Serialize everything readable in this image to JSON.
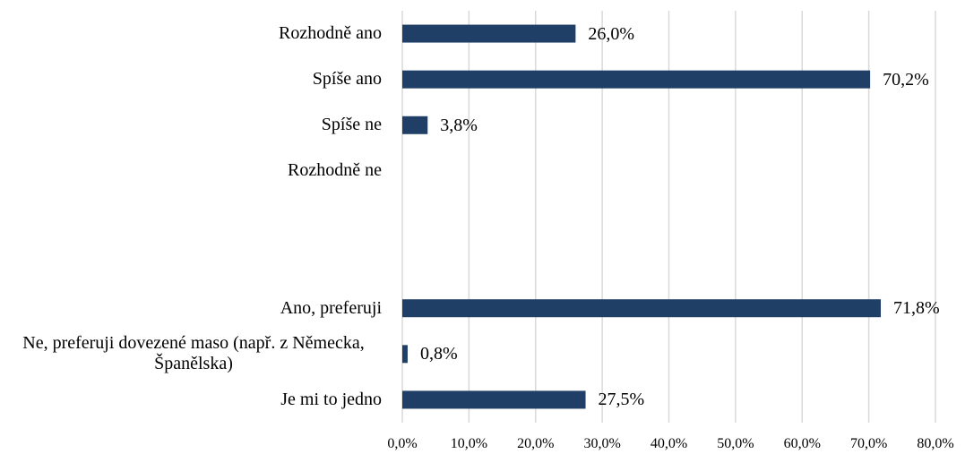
{
  "chart_data": {
    "type": "bar",
    "orientation": "horizontal",
    "categories": [
      "Rozhodně ano",
      "Spíše ano",
      "Spíše ne",
      "Rozhodně ne",
      null,
      null,
      "Ano, preferuji",
      "Ne, preferuji dovezené maso (např. z Německa, Španělska)",
      "Je mi to jedno"
    ],
    "values": [
      26.0,
      70.2,
      3.8,
      null,
      null,
      null,
      71.8,
      0.8,
      27.5
    ],
    "value_labels": [
      "26,0%",
      "70,2%",
      "3,8%",
      null,
      null,
      null,
      "71,8%",
      "0,8%",
      "27,5%"
    ],
    "color": "#1f3f66",
    "xlim": [
      0,
      80
    ],
    "xticks": [
      {
        "value": 0,
        "label": "0,0%"
      },
      {
        "value": 10,
        "label": "10,0%"
      },
      {
        "value": 20,
        "label": "20,0%"
      },
      {
        "value": 30,
        "label": "30,0%"
      },
      {
        "value": 40,
        "label": "40,0%"
      },
      {
        "value": 50,
        "label": "50,0%"
      },
      {
        "value": 60,
        "label": "60,0%"
      },
      {
        "value": 70,
        "label": "70,0%"
      },
      {
        "value": 80,
        "label": "80,0%"
      }
    ],
    "grid": true
  }
}
